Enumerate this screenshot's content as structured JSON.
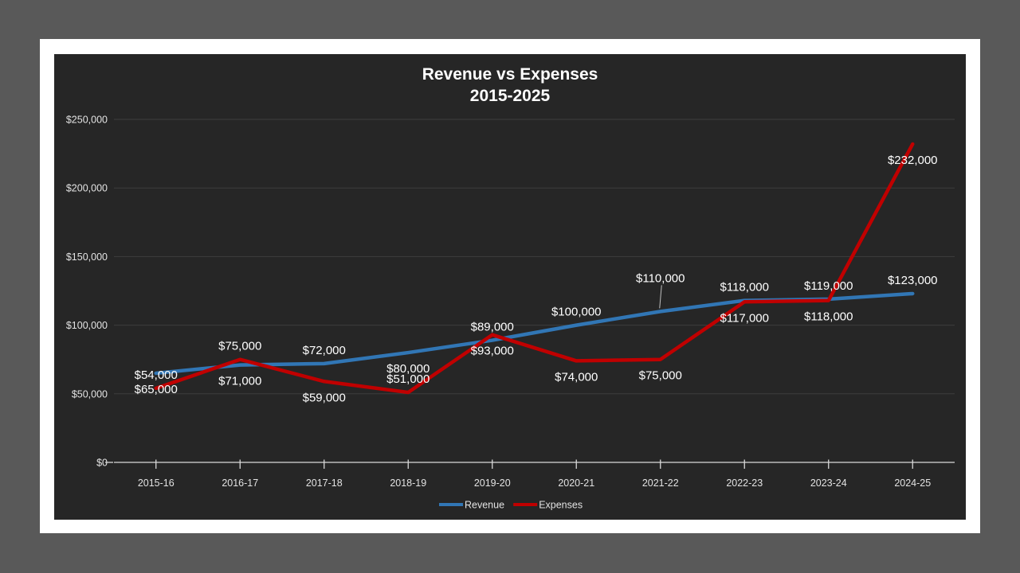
{
  "page": {
    "background_color": "#595959",
    "slide_background_color": "#ffffff"
  },
  "chart": {
    "background_color": "#262626",
    "title_line1": "Revenue vs Expenses",
    "title_line2": "2015-2025",
    "title_color": "#ffffff",
    "axis_label_color": "#e3e3e3",
    "gridline_color": "#3d3d3d",
    "axis_line_color": "#d9d9d9",
    "data_label_color": "#ffffff",
    "leader_line_color": "#bfbfbf"
  },
  "chart_data": {
    "type": "line",
    "title": "Revenue vs Expenses",
    "subtitle": "2015-2025",
    "categories": [
      "2015-16",
      "2016-17",
      "2017-18",
      "2018-19",
      "2019-20",
      "2020-21",
      "2021-22",
      "2022-23",
      "2023-24",
      "2024-25"
    ],
    "series": [
      {
        "name": "Revenue",
        "color": "#3176B5",
        "values": [
          65000,
          71000,
          72000,
          80000,
          89000,
          100000,
          110000,
          118000,
          119000,
          123000
        ],
        "data_labels": [
          "$65,000",
          "$71,000",
          "$72,000",
          "$80,000",
          "$89,000",
          "$100,000",
          "$110,000",
          "$118,000",
          "$119,000",
          "$123,000"
        ],
        "label_positions": [
          "below",
          "below",
          "above",
          "below",
          "above",
          "above",
          "above-leader",
          "above",
          "above",
          "above"
        ]
      },
      {
        "name": "Expenses",
        "color": "#C00000",
        "values": [
          54000,
          75000,
          59000,
          51000,
          93000,
          74000,
          75000,
          117000,
          118000,
          232000
        ],
        "data_labels": [
          "$54,000",
          "$75,000",
          "$59,000",
          "$51,000",
          "$93,000",
          "$74,000",
          "$75,000",
          "$117,000",
          "$118,000",
          "$232,000"
        ],
        "label_positions": [
          "above",
          "above",
          "below",
          "above",
          "below",
          "below",
          "below",
          "below",
          "below",
          "below"
        ]
      }
    ],
    "ylim": [
      0,
      250000
    ],
    "yticks": [
      0,
      50000,
      100000,
      150000,
      200000,
      250000
    ],
    "ytick_labels": [
      "$0",
      "$50,000",
      "$100,000",
      "$150,000",
      "$200,000",
      "$250,000"
    ],
    "grid": "horizontal",
    "legend_position": "bottom",
    "legend": [
      "Revenue",
      "Expenses"
    ]
  }
}
